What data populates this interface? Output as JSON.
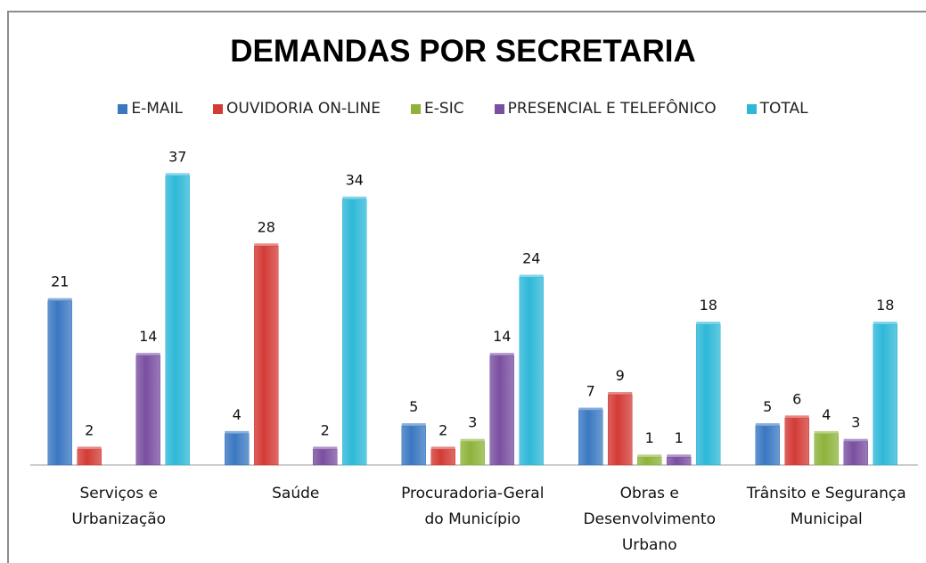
{
  "chart_data": {
    "type": "bar",
    "title": "DEMANDAS POR SECRETARIA",
    "categories": [
      "Serviços e Urbanização",
      "Saúde",
      "Procuradoria-Geral do Município",
      "Obras e Desenvolvimento Urbano",
      "Trânsito e Segurança Municipal"
    ],
    "series": [
      {
        "name": "E-MAIL",
        "color": "#3a78c2",
        "values": [
          21,
          4,
          5,
          7,
          5
        ]
      },
      {
        "name": "OUVIDORIA ON-LINE",
        "color": "#d33b36",
        "values": [
          2,
          28,
          2,
          9,
          6
        ]
      },
      {
        "name": "E-SIC",
        "color": "#8db33a",
        "values": [
          null,
          null,
          3,
          1,
          4
        ]
      },
      {
        "name": "PRESENCIAL E TELEFÔNICO",
        "color": "#7a4fa0",
        "values": [
          14,
          2,
          14,
          1,
          3
        ]
      },
      {
        "name": "TOTAL",
        "color": "#2eb8d8",
        "values": [
          37,
          34,
          24,
          18,
          18
        ]
      }
    ],
    "ylim": [
      0,
      40
    ],
    "legend": "top"
  }
}
